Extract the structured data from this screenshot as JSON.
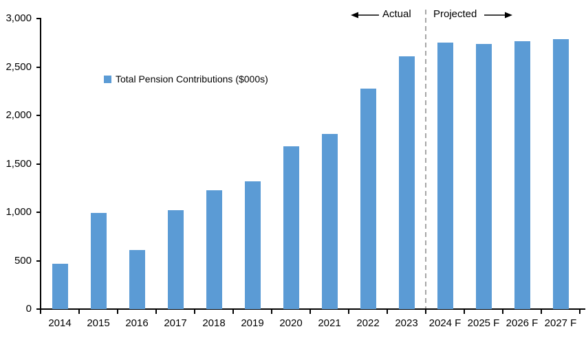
{
  "chart_data": {
    "type": "bar",
    "title": "",
    "series_name": "Total Pension Contributions ($000s)",
    "categories": [
      "2014",
      "2015",
      "2016",
      "2017",
      "2018",
      "2019",
      "2020",
      "2021",
      "2022",
      "2023",
      "2024 F",
      "2025 F",
      "2026 F",
      "2027 F"
    ],
    "values": [
      470,
      990,
      610,
      1020,
      1230,
      1320,
      1680,
      1810,
      2280,
      2610,
      2750,
      2740,
      2765,
      2790
    ],
    "ylim": [
      0,
      3000
    ],
    "ytick_step": 500,
    "ytick_labels": [
      "0",
      "500",
      "1,000",
      "1,500",
      "2,000",
      "2,500",
      "3,000"
    ],
    "grid": false,
    "legend_position": "inside-upper-left",
    "bar_color": "#5B9BD5",
    "divider_after_index": 9,
    "annotations": {
      "actual_label": "Actual",
      "projected_label": "Projected"
    }
  },
  "colors": {
    "bar": "#5B9BD5",
    "axis": "#000000",
    "divider": "#A6A6A6",
    "text": "#000000",
    "background": "#FFFFFF"
  }
}
